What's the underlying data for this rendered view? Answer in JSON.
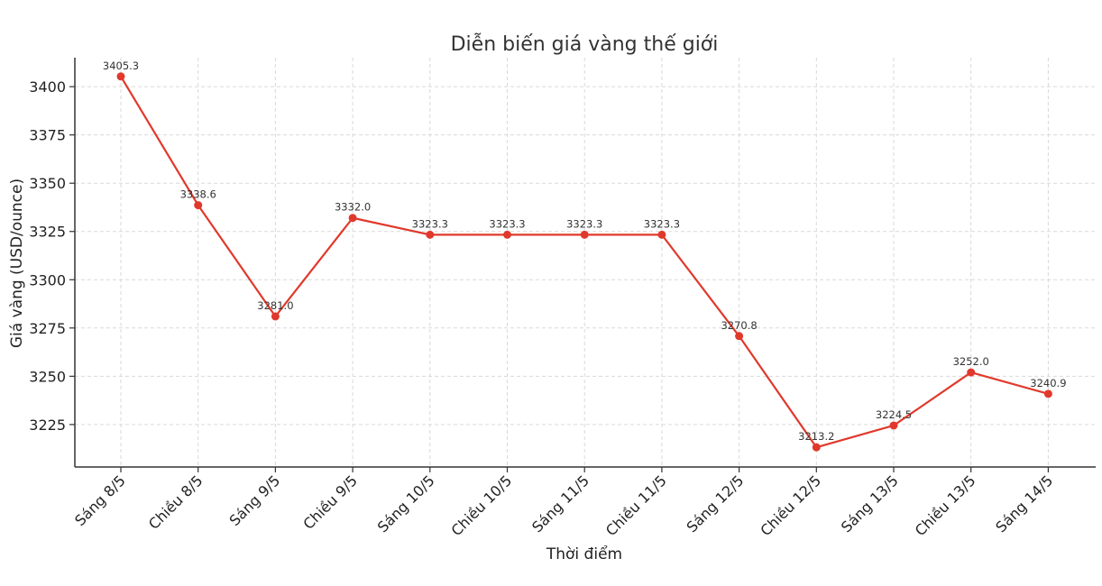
{
  "chart_data": {
    "type": "line",
    "title": "Diễn biến giá vàng thế giới",
    "xlabel": "Thời điểm",
    "ylabel": "Giá vàng (USD/ounce)",
    "categories": [
      "Sáng 8/5",
      "Chiều 8/5",
      "Sáng 9/5",
      "Chiều 9/5",
      "Sáng 10/5",
      "Chiều 10/5",
      "Sáng 11/5",
      "Chiều 11/5",
      "Sáng 12/5",
      "Chiều 12/5",
      "Sáng 13/5",
      "Chiều 13/5",
      "Sáng 14/5"
    ],
    "values": [
      3405.3,
      3338.6,
      3281.0,
      3332.0,
      3323.3,
      3323.3,
      3323.3,
      3323.3,
      3270.8,
      3213.2,
      3224.5,
      3252.0,
      3240.9
    ],
    "data_labels": [
      "3405.3",
      "3338.6",
      "3281.0",
      "3332.0",
      "3323.3",
      "3323.3",
      "3323.3",
      "3323.3",
      "3270.8",
      "3213.2",
      "3224.5",
      "3252.0",
      "3240.9"
    ],
    "yticks": [
      3225,
      3250,
      3275,
      3300,
      3325,
      3350,
      3375,
      3400
    ],
    "ylim": [
      3203,
      3415
    ],
    "grid": true,
    "line_color": "#e0392b",
    "marker_color": "#e0392b",
    "grid_color": "#d9d9d9"
  }
}
